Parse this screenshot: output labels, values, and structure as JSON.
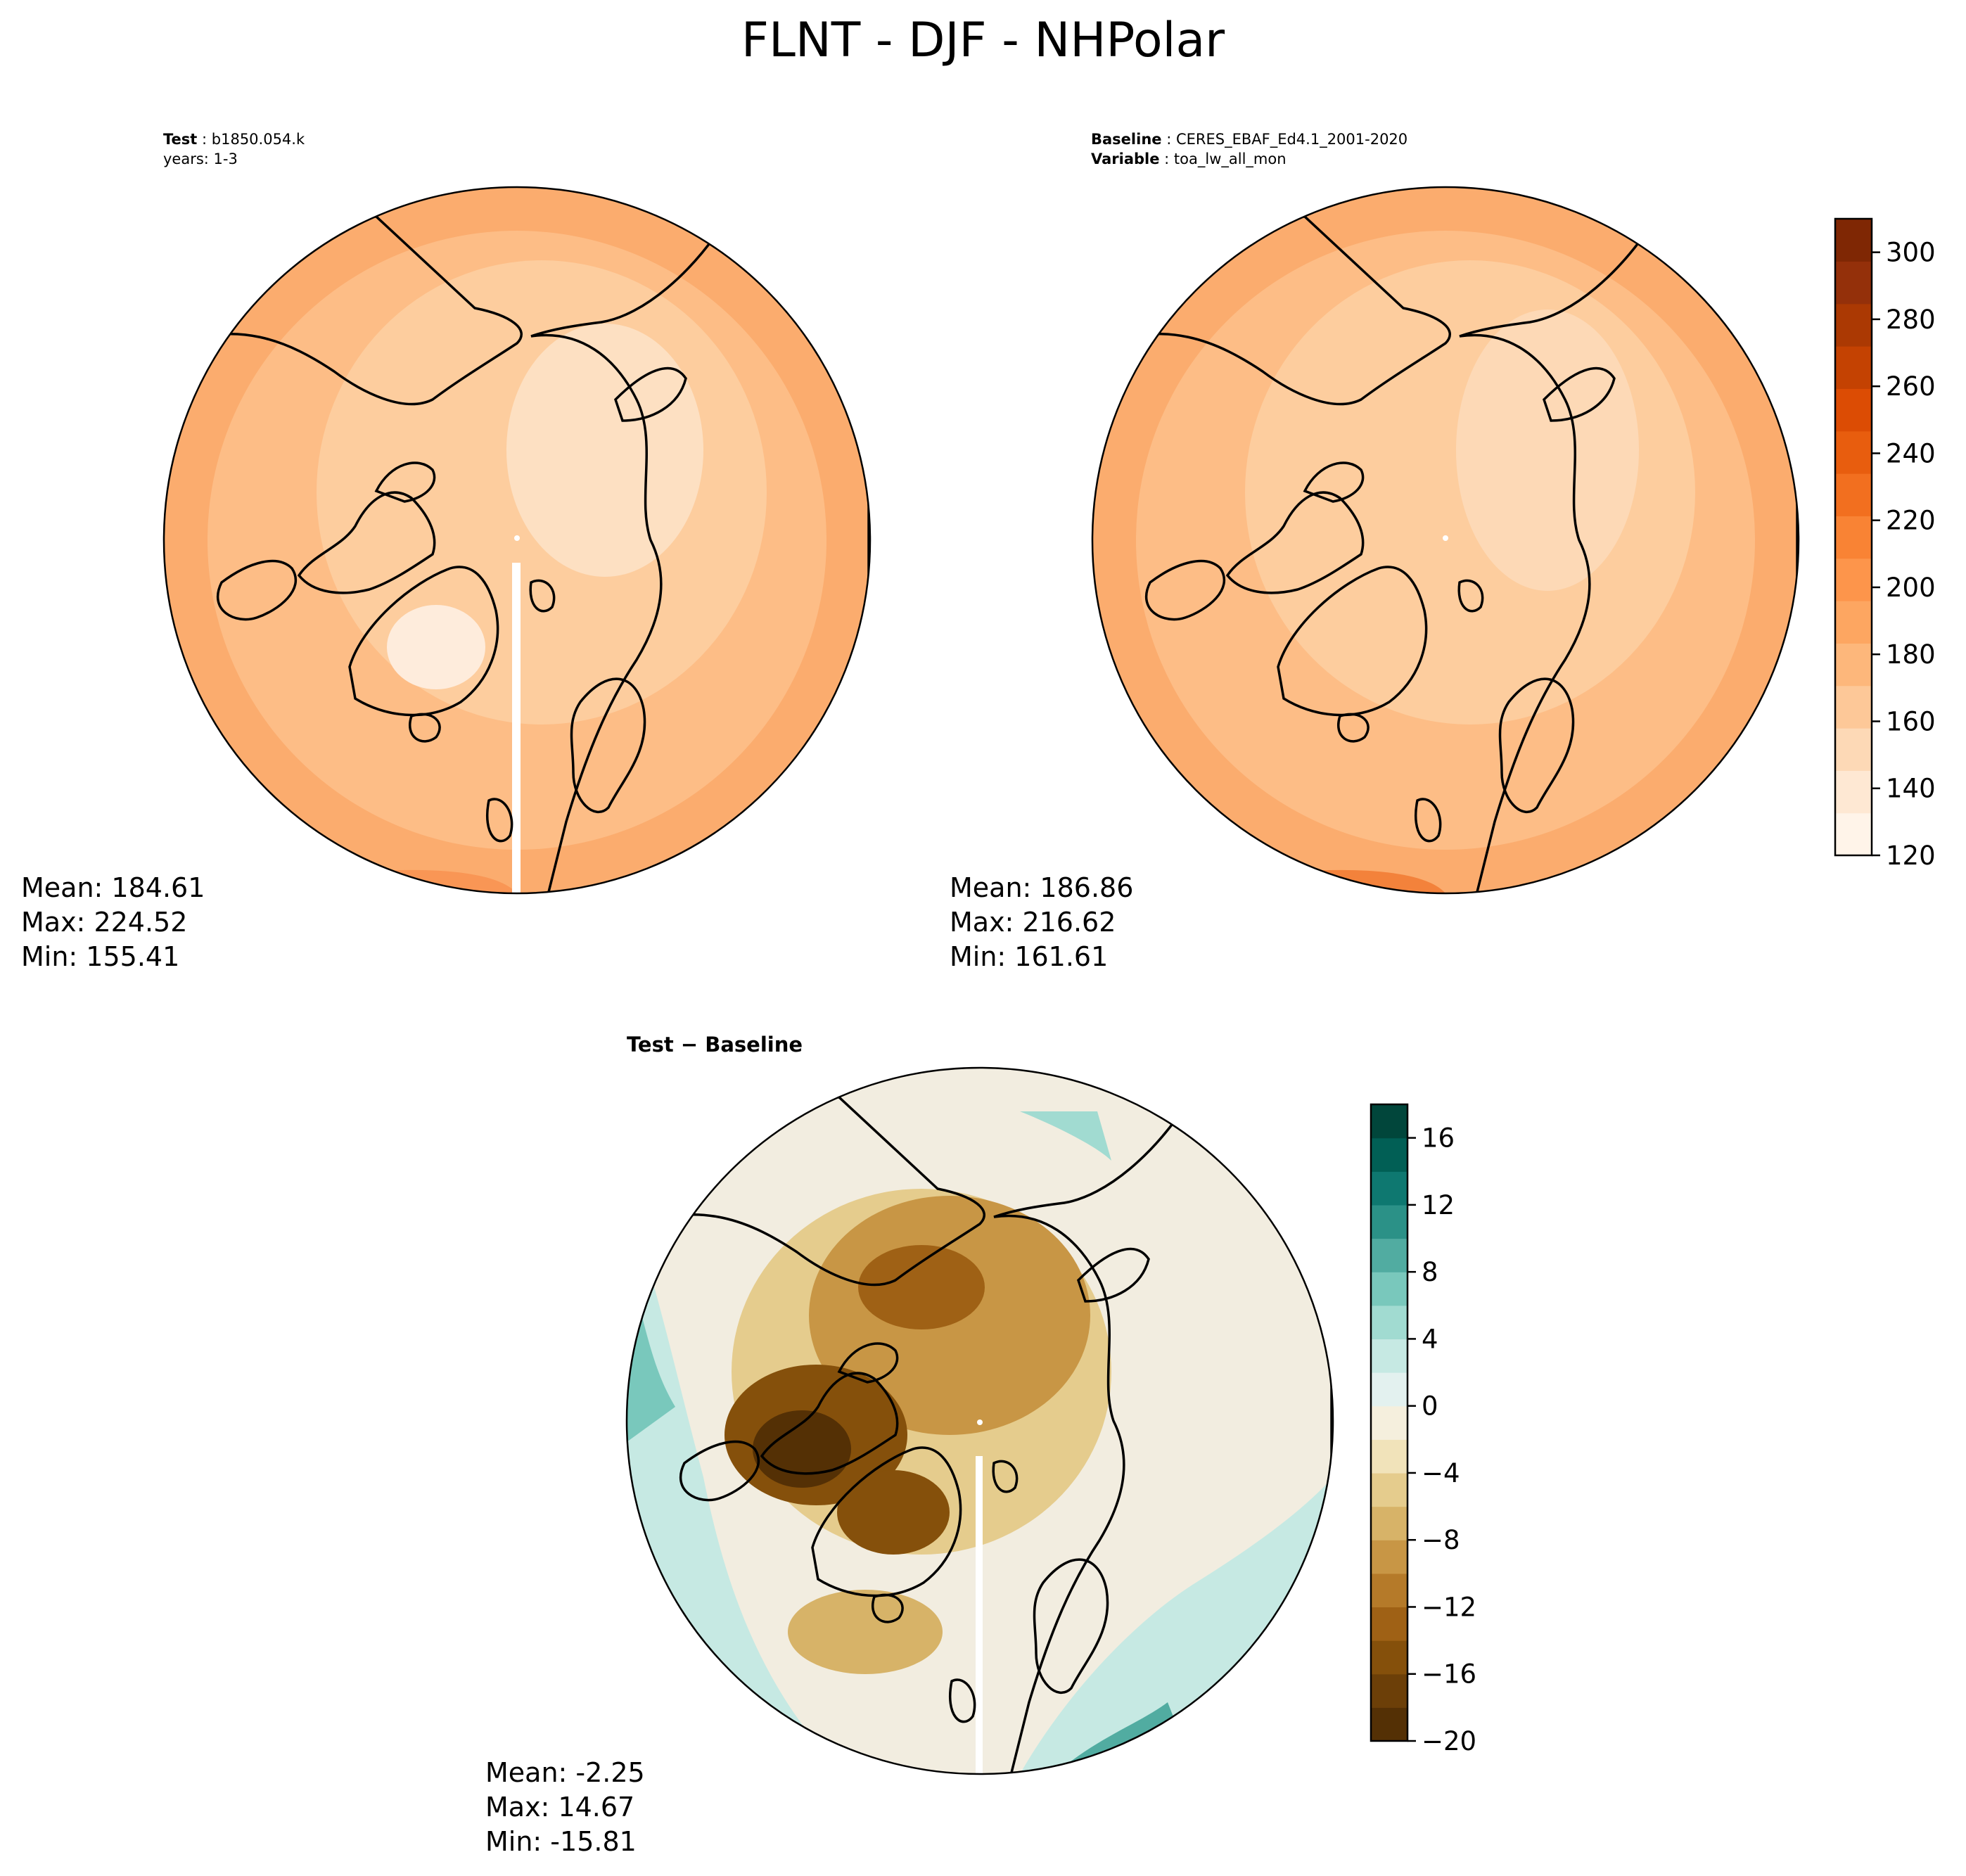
{
  "title": "FLNT - DJF - NHPolar",
  "panels": {
    "test": {
      "label_key": "Test",
      "label_value": "b1850.054.k",
      "years": "years: 1-3",
      "stats": {
        "mean": "Mean: 184.61",
        "max": "Max: 224.52",
        "min": "Min: 155.41"
      }
    },
    "baseline": {
      "label_key": "Baseline",
      "label_value": "CERES_EBAF_Ed4.1_2001-2020",
      "variable_key": "Variable",
      "variable_value": "toa_lw_all_mon",
      "stats": {
        "mean": "Mean: 186.86",
        "max": "Max: 216.62",
        "min": "Min: 161.61"
      }
    },
    "diff": {
      "title": "Test − Baseline",
      "stats": {
        "mean": "Mean: -2.25",
        "max": "Max: 14.67",
        "min": "Min: -15.81"
      }
    }
  },
  "colorbar_main": {
    "ticks": [
      "120",
      "140",
      "160",
      "180",
      "200",
      "220",
      "240",
      "260",
      "280",
      "300"
    ],
    "range": [
      120,
      310
    ],
    "colors": [
      "#fff4e9",
      "#fee8d3",
      "#fdd9b6",
      "#fdc898",
      "#fdb77b",
      "#fda661",
      "#fd954b",
      "#f98334",
      "#f26f1f",
      "#e85d0e",
      "#dc4c04",
      "#c44202",
      "#ab3903",
      "#94300a",
      "#7f2704"
    ]
  },
  "colorbar_diff": {
    "ticks": [
      "16",
      "12",
      "8",
      "4",
      "0",
      "−4",
      "−8",
      "−12",
      "−16",
      "−20"
    ],
    "range": [
      -20,
      18
    ],
    "colors": [
      "#543005",
      "#6c3f08",
      "#85500b",
      "#9f6115",
      "#b57a29",
      "#c89645",
      "#d7b368",
      "#e5cc8d",
      "#f1e3ba",
      "#f5efdd",
      "#e3f1ef",
      "#c6e9e3",
      "#a1dbd1",
      "#79c8bc",
      "#51aca1",
      "#2b9187",
      "#0e7870",
      "#015f55",
      "#01463b"
    ]
  },
  "map_fill": {
    "test_base": "#fbac6e",
    "test_interior": "#fdd0a6",
    "baseline_base": "#fbac6e",
    "baseline_interior": "#fdd0a6",
    "diff_base": "#f2ede0"
  }
}
